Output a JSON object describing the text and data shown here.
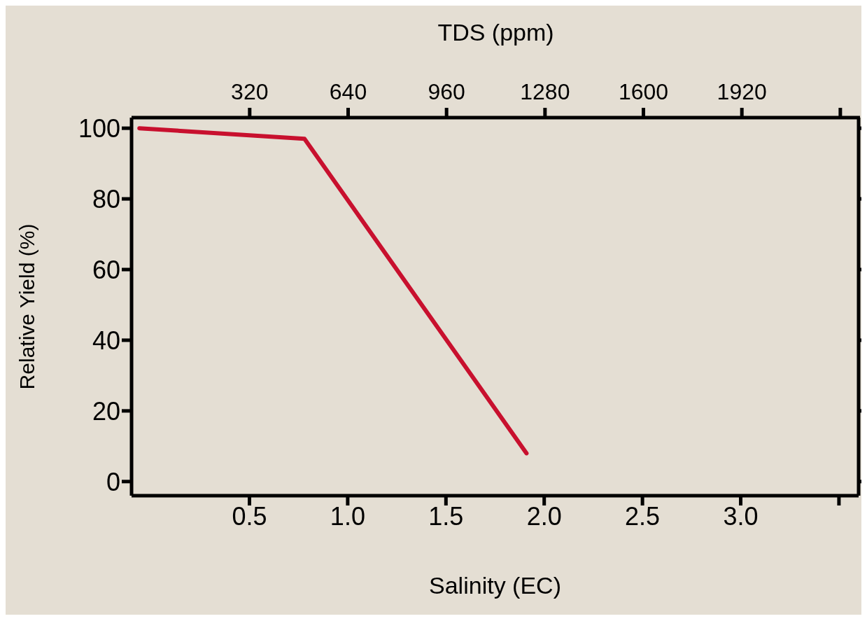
{
  "chart_data": {
    "type": "line",
    "xlabel": "Salinity (EC)",
    "ylabel": "Relative Yield (%)",
    "x2label": "TDS (ppm)",
    "x": [
      -0.06,
      0.78,
      1.91
    ],
    "series": [
      {
        "color": "#c8102e",
        "values": [
          100,
          97,
          8
        ]
      }
    ],
    "xlim": [
      -0.1,
      3.6
    ],
    "xticks": [
      0.5,
      {
        "value": 1,
        "label": "1.0"
      },
      1.5,
      {
        "value": 2,
        "label": "2.0"
      },
      2.5,
      {
        "value": 3,
        "label": "3.0"
      },
      {
        "value": 3.5,
        "label": null
      }
    ],
    "x2lim": [
      -64,
      2304
    ],
    "x2ticks": [
      320,
      640,
      960,
      1280,
      1600,
      1920,
      {
        "value": 2240,
        "label": null
      }
    ],
    "ylim": [
      -4,
      103
    ],
    "yticks": [
      0,
      20,
      40,
      60,
      80,
      100
    ],
    "marker": "none",
    "line_style": "solid"
  }
}
